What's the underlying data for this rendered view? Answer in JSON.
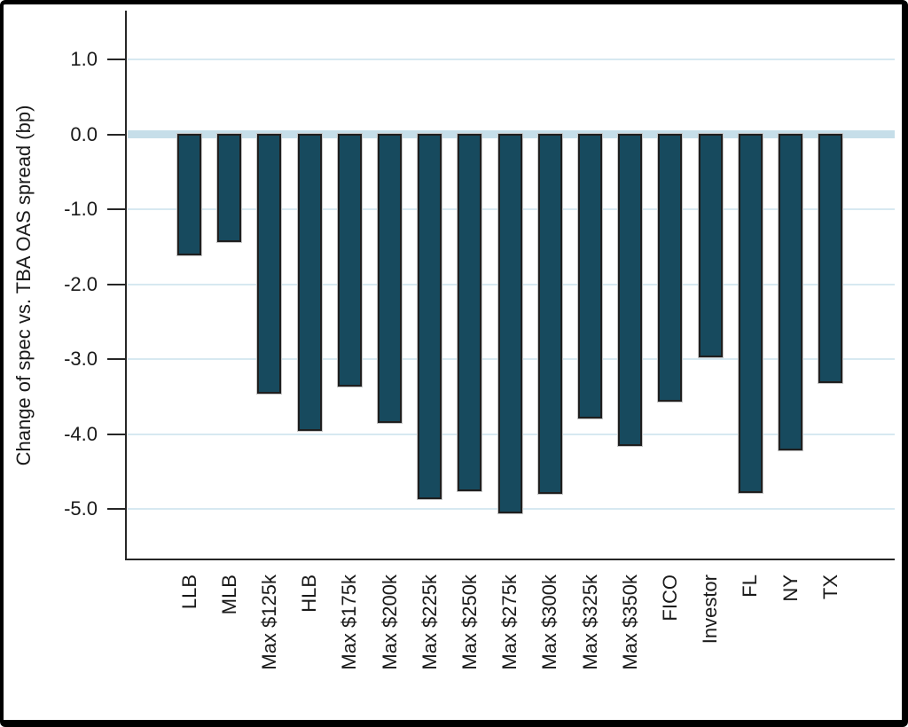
{
  "chart_data": {
    "type": "bar",
    "title": "",
    "xlabel": "",
    "ylabel": "Change of spec vs. TBA OAS spread (bp)",
    "categories": [
      "LLB",
      "MLB",
      "Max $125k",
      "HLB",
      "Max $175k",
      "Max $200k",
      "Max $225k",
      "Max $250k",
      "Max $275k",
      "Max $300k",
      "Max $325k",
      "Max $350k",
      "FICO",
      "Investor",
      "FL",
      "NY",
      "TX"
    ],
    "values": [
      -1.62,
      -1.44,
      -3.47,
      -3.97,
      -3.37,
      -3.86,
      -4.87,
      -4.77,
      -5.07,
      -4.81,
      -3.8,
      -4.17,
      -3.57,
      -2.98,
      -4.79,
      -4.22,
      -3.33
    ],
    "yticks": [
      1.0,
      0.0,
      -1.0,
      -2.0,
      -3.0,
      -4.0,
      -5.0
    ],
    "ytick_labels": [
      "1.0",
      "0.0",
      "-1.0",
      "-2.0",
      "-3.0",
      "-4.0",
      "-5.0"
    ],
    "ylim": [
      -5.7,
      1.65
    ],
    "grid": true,
    "legend": "none",
    "colors": {
      "bar_fill": "#174A5E",
      "bar_border": "#1F1F1F",
      "gridline": "#D7E9F1",
      "zero_band": "#C6DEE9",
      "axis": "#262626",
      "text": "#1A1A1A",
      "frame": "#000000",
      "background": "#FFFFFF"
    }
  }
}
